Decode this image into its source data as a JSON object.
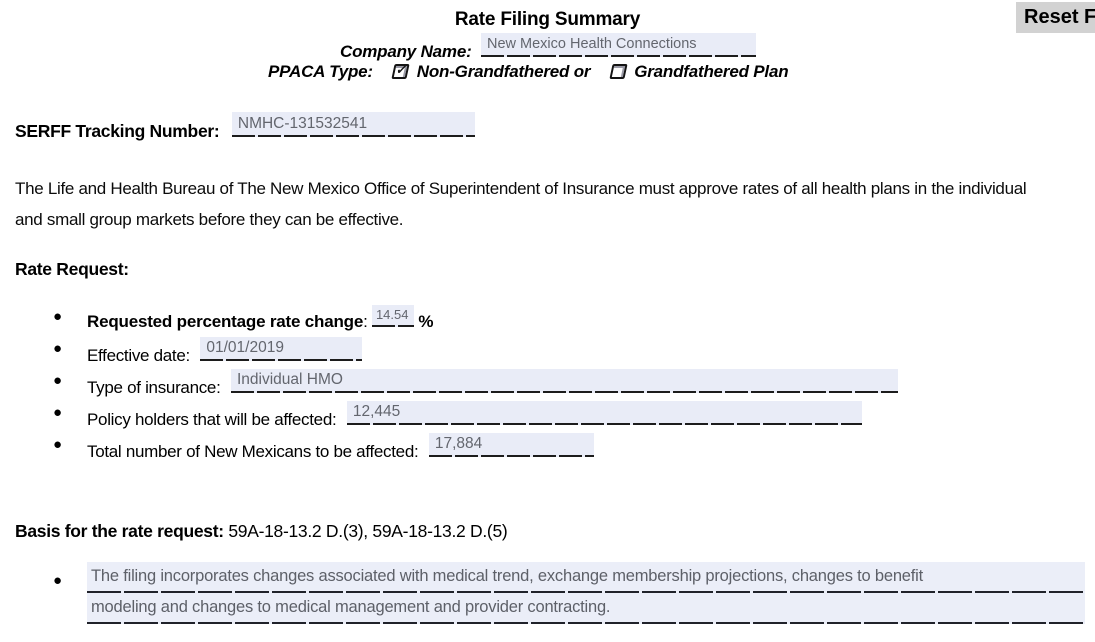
{
  "colors": {
    "field_bg": "#e9ecf7",
    "field_text": "#63666e",
    "underline": "#1c1c1c",
    "button_bg": "#d2d2d2"
  },
  "toolbar": {
    "reset_label": "Reset Form"
  },
  "header": {
    "title": "Rate Filing Summary",
    "company_label": "Company Name:",
    "company_value": "New Mexico Health Connections",
    "ppaca_label": "PPACA Type:",
    "option_non_grandfathered": "Non-Grandfathered or",
    "option_grandfathered": "Grandfathered Plan",
    "non_grandfathered_checked": true,
    "grandfathered_checked": false
  },
  "serff": {
    "label": "SERFF Tracking Number:",
    "value": "NMHC-131532541"
  },
  "intro": "The Life and Health Bureau of The New Mexico Office of Superintendent of Insurance must approve rates of all health plans in the individual and small group markets before they can be effective.",
  "rate_request": {
    "heading": "Rate Request:",
    "items": [
      {
        "label": "Requested  percentage rate change",
        "colon": ": ",
        "value": "14.54",
        "suffix": "%"
      },
      {
        "label": "Effective date:",
        "value": "01/01/2019"
      },
      {
        "label": "Type of insurance:",
        "value": "Individual HMO"
      },
      {
        "label": "Policy holders that will be affected:",
        "value": "12,445"
      },
      {
        "label": "Total number of New Mexicans to be affected:",
        "value": "17,884"
      }
    ]
  },
  "basis": {
    "label": "Basis for the rate request:",
    "value": "59A-18-13.2 D.(3),  59A-18-13.2 D.(5)"
  },
  "narrative": {
    "lines": [
      "The filing incorporates changes associated with medical trend, exchange membership projections, changes to benefit",
      "modeling and changes to medical management and provider contracting."
    ]
  },
  "bullet_glyph": "●"
}
